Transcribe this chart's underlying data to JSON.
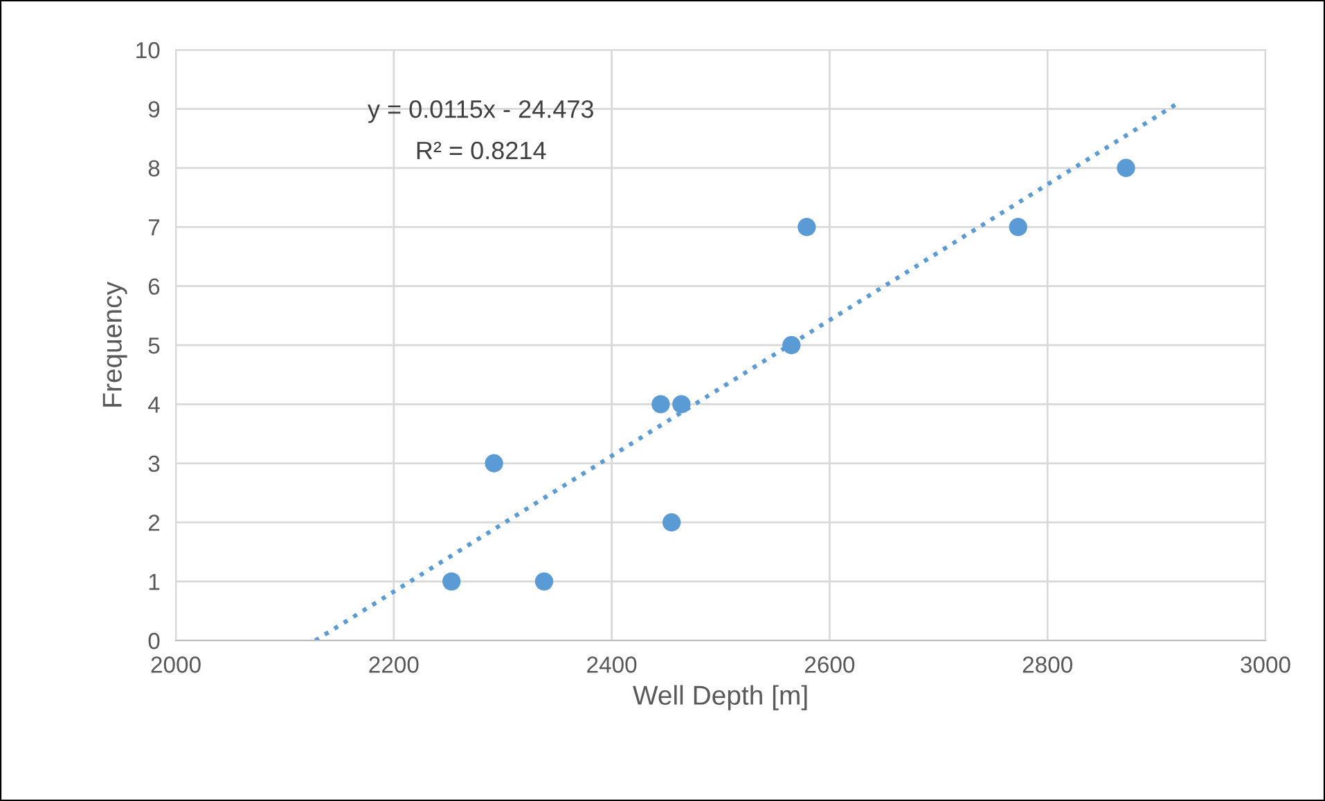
{
  "chart_data": {
    "type": "scatter",
    "xlabel": "Well Depth [m]",
    "ylabel": "Frequency",
    "series": [
      {
        "color": "#5b9bd5",
        "marker": "circle",
        "x": [
          2253,
          2292,
          2338,
          2445,
          2464,
          2455,
          2565,
          2579,
          2773,
          2872
        ],
        "values": [
          1,
          3,
          1,
          4,
          4,
          2,
          5,
          7,
          7,
          8
        ]
      },
      {
        "type": "line",
        "color": "#5b9bd5",
        "line_style": "dotted",
        "marker": "none",
        "x": [
          2128,
          2920
        ],
        "values": [
          0,
          9.1
        ]
      }
    ],
    "annotations": [
      "y = 0.0115x - 24.473",
      "R² = 0.8214"
    ],
    "xlim": [
      2000,
      3000
    ],
    "xticks": [
      2000,
      2200,
      2400,
      2600,
      2800,
      3000
    ],
    "ylim": [
      0,
      10
    ],
    "yticks": [
      0,
      1,
      2,
      3,
      4,
      5,
      6,
      7,
      8,
      9,
      10
    ],
    "grid": true,
    "legend": false
  }
}
